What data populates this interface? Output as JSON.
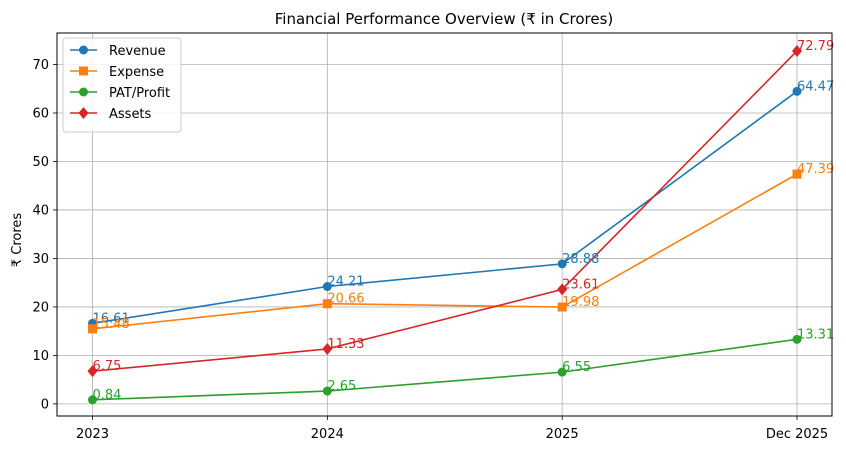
{
  "chart_data": {
    "type": "line",
    "title": "Financial Performance Overview (₹ in Crores)",
    "xlabel": "",
    "ylabel": "₹ Crores",
    "categories": [
      "2023",
      "2024",
      "2025",
      "Dec 2025"
    ],
    "ylim": [
      -2.5,
      76.5
    ],
    "yticks": [
      0,
      10,
      20,
      30,
      40,
      50,
      60,
      70
    ],
    "grid": true,
    "legend_position": "top-left",
    "series": [
      {
        "name": "Revenue",
        "values": [
          16.61,
          24.21,
          28.88,
          64.47
        ],
        "labels": [
          "16.61",
          "24.21",
          "28.88",
          "64.47"
        ],
        "color": "#1f77b4",
        "marker": "circle"
      },
      {
        "name": "Expense",
        "values": [
          15.48,
          20.66,
          19.98,
          47.39
        ],
        "labels": [
          "15.48",
          "20.66",
          "19.98",
          "47.39"
        ],
        "color": "#ff7f0e",
        "marker": "square"
      },
      {
        "name": "PAT/Profit",
        "values": [
          0.84,
          2.65,
          6.55,
          13.31
        ],
        "labels": [
          "0.84",
          "2.65",
          "6.55",
          "13.31"
        ],
        "color": "#2ca02c",
        "marker": "circle"
      },
      {
        "name": "Assets",
        "values": [
          6.75,
          11.33,
          23.61,
          72.79
        ],
        "labels": [
          "6.75",
          "11.33",
          "23.61",
          "72.79"
        ],
        "color": "#d62728",
        "marker": "diamond"
      }
    ]
  }
}
